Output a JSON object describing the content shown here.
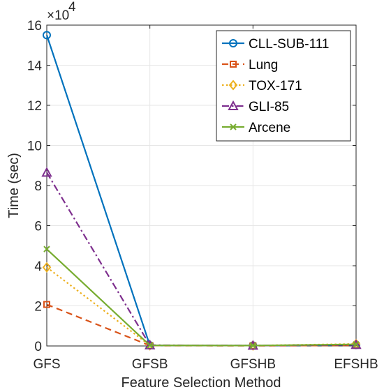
{
  "chart_data": {
    "type": "line",
    "categories": [
      "GFS",
      "GFSB",
      "GFSHB",
      "EFSHB"
    ],
    "xlabel": "Feature Selection Method",
    "ylabel": "Time (sec)",
    "ylim": [
      0,
      16
    ],
    "y_ticks": [
      0,
      2,
      4,
      6,
      8,
      10,
      12,
      14,
      16
    ],
    "y_tick_labels": [
      "0",
      "2",
      "4",
      "6",
      "8",
      "10",
      "12",
      "14",
      "16"
    ],
    "y_exponent": {
      "base": "×10",
      "power": "4"
    },
    "grid": true,
    "legend_position": "top-right",
    "series": [
      {
        "name": "CLL-SUB-111",
        "values": [
          15.5,
          0.03,
          0.02,
          0.05
        ],
        "color": "#0072BD",
        "dash": "solid",
        "marker": "circle"
      },
      {
        "name": "Lung",
        "values": [
          2.07,
          0.02,
          0.01,
          0.03
        ],
        "color": "#D95319",
        "dash": "dashed",
        "marker": "square"
      },
      {
        "name": "TOX-171",
        "values": [
          3.92,
          0.03,
          0.02,
          0.1
        ],
        "color": "#EDB120",
        "dash": "dotted",
        "marker": "diamond"
      },
      {
        "name": "GLI-85",
        "values": [
          8.65,
          0.04,
          0.02,
          0.06
        ],
        "color": "#7E2F8E",
        "dash": "dashdot",
        "marker": "triangle"
      },
      {
        "name": "Arcene",
        "values": [
          4.83,
          0.03,
          0.02,
          0.08
        ],
        "color": "#77AC30",
        "dash": "solid",
        "marker": "x"
      }
    ]
  }
}
